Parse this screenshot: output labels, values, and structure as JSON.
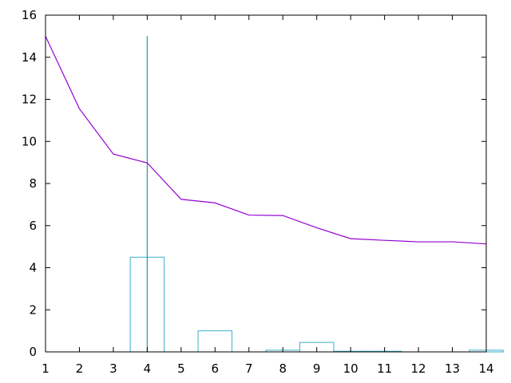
{
  "chart_data": {
    "type": "line",
    "title": "",
    "xlabel": "",
    "ylabel": "",
    "xlim": [
      1,
      14
    ],
    "ylim": [
      0,
      16
    ],
    "x_ticks": [
      "1",
      "2",
      "3",
      "4",
      "5",
      "6",
      "7",
      "8",
      "9",
      "10",
      "11",
      "12",
      "13",
      "14"
    ],
    "y_ticks": [
      "0",
      "2",
      "4",
      "6",
      "8",
      "10",
      "12",
      "14",
      "16"
    ],
    "grid": false,
    "legend": "none",
    "series": [
      {
        "kind": "line",
        "color": "#9400d3",
        "x": [
          1,
          2,
          3,
          4,
          5,
          6,
          7,
          8,
          9,
          10,
          11,
          12,
          13,
          14
        ],
        "y": [
          15.0,
          11.55,
          9.4,
          8.98,
          7.25,
          7.08,
          6.5,
          6.48,
          5.9,
          5.38,
          5.3,
          5.23,
          5.23,
          5.13
        ]
      },
      {
        "kind": "histogram",
        "color": "#3aafc9",
        "bin_width": 1,
        "bins": [
          {
            "center": 4,
            "value": 4.5
          },
          {
            "center": 6,
            "value": 1.0
          },
          {
            "center": 8,
            "value": 0.08
          },
          {
            "center": 9,
            "value": 0.45
          },
          {
            "center": 10,
            "value": 0.03
          },
          {
            "center": 11,
            "value": 0.03
          },
          {
            "center": 14,
            "value": 0.08
          }
        ]
      },
      {
        "kind": "vertical-line",
        "color": "#1f9aa8",
        "x": 4,
        "y_from": 0,
        "y_to": 15
      }
    ]
  }
}
